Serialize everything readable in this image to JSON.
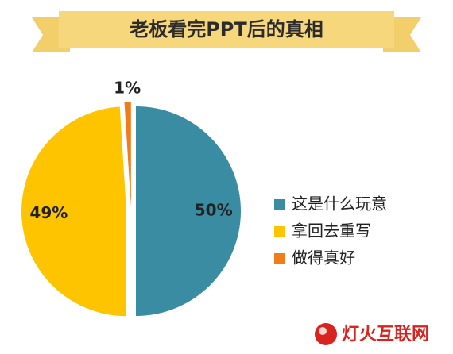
{
  "chart_data": {
    "type": "pie",
    "title": "老板看完PPT后的真相",
    "categories": [
      "这是什么玩意",
      "拿回去重写",
      "做得真好"
    ],
    "values": [
      50,
      49,
      1
    ],
    "value_labels": [
      "50%",
      "49%",
      "1%"
    ],
    "colors": [
      "#3a8ca3",
      "#ffc400",
      "#f07c1c"
    ],
    "legend": "right"
  },
  "watermark": "灯火互联网"
}
